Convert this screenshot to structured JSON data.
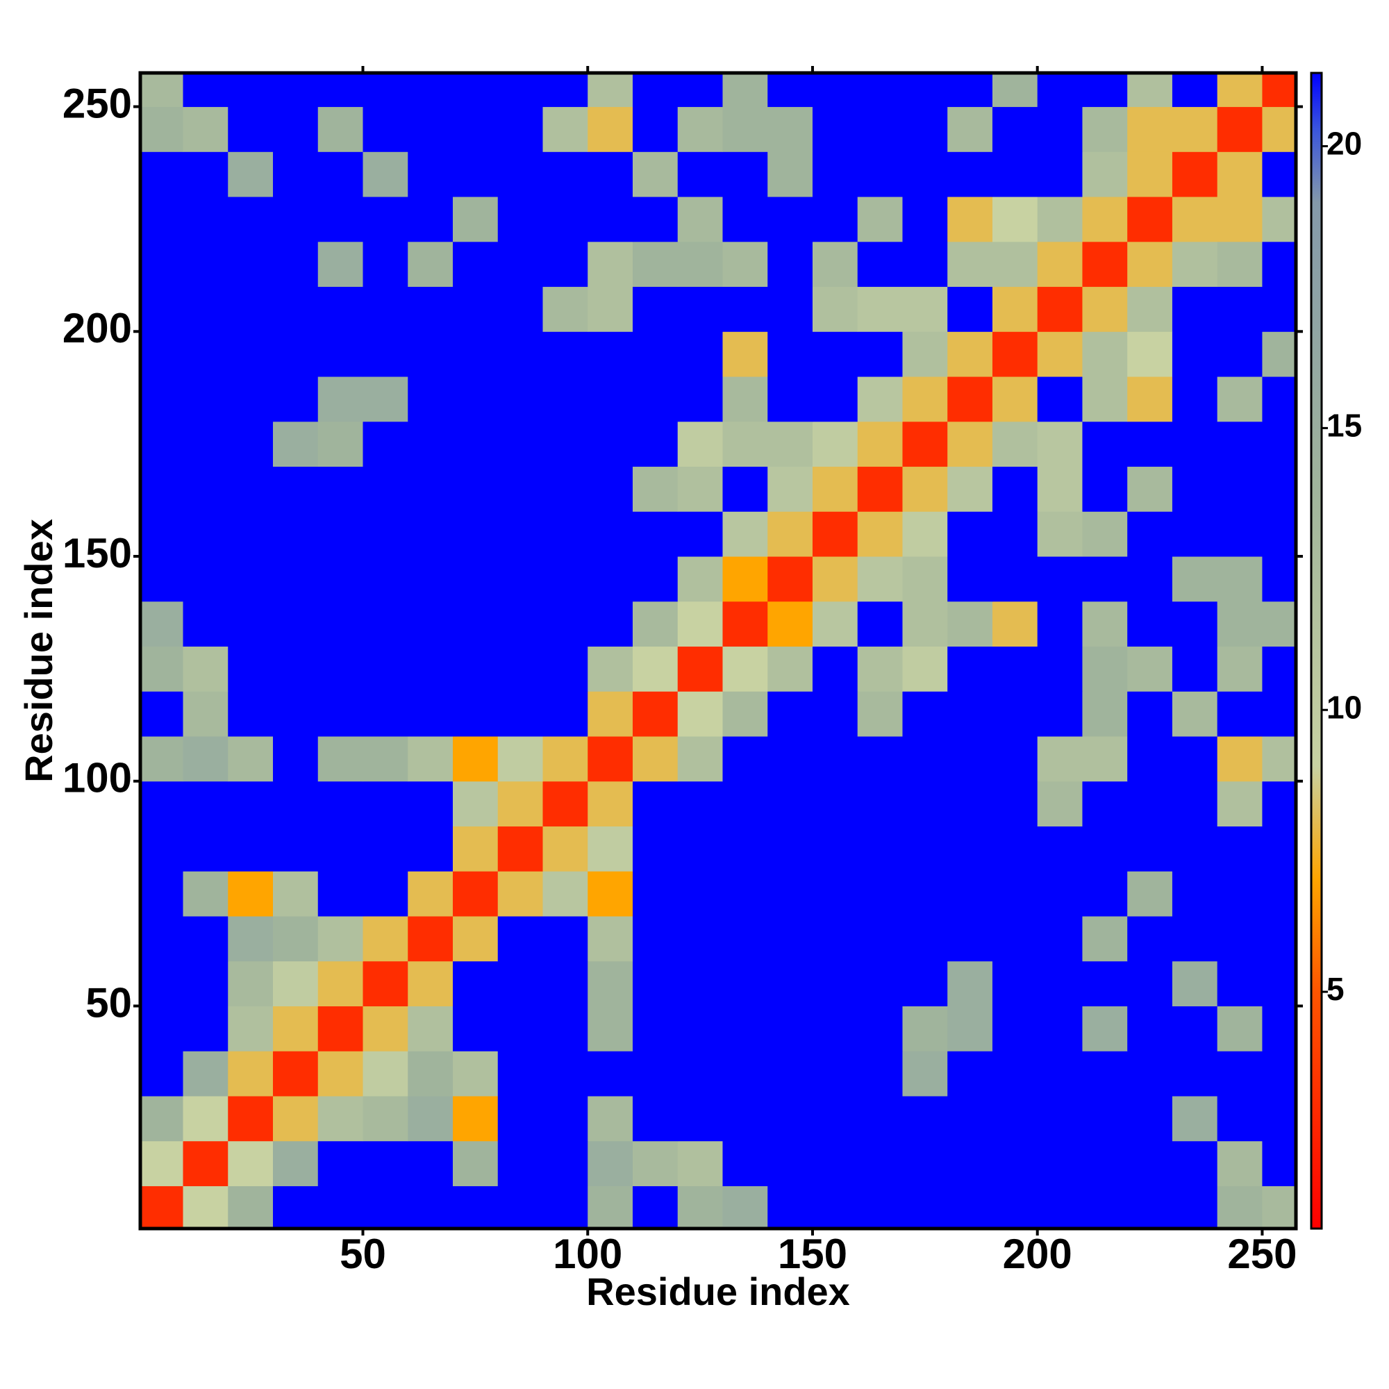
{
  "chart_data": {
    "type": "heatmap",
    "xlabel": "Residue index",
    "ylabel": "Residue index",
    "x": [
      5,
      15,
      25,
      35,
      45,
      55,
      65,
      75,
      85,
      95,
      105,
      115,
      125,
      135,
      145,
      155,
      165,
      175,
      185,
      195,
      205,
      215,
      225,
      235,
      245,
      255
    ],
    "y": [
      5,
      15,
      25,
      35,
      45,
      55,
      65,
      75,
      85,
      95,
      105,
      115,
      125,
      135,
      145,
      155,
      165,
      175,
      185,
      195,
      205,
      215,
      225,
      235,
      245,
      255
    ],
    "z": [
      [
        3,
        9,
        14,
        21.3,
        21.3,
        21.3,
        21.3,
        21.3,
        21.3,
        21.3,
        14,
        21.3,
        14,
        15,
        21.3,
        21.3,
        21.3,
        21.3,
        21.3,
        21.3,
        21.3,
        21.3,
        21.3,
        21.3,
        14,
        13
      ],
      [
        9,
        3,
        9,
        15,
        21.3,
        21.3,
        21.3,
        14,
        21.3,
        21.3,
        15,
        13,
        12,
        21.3,
        21.3,
        21.3,
        21.3,
        21.3,
        21.3,
        21.3,
        21.3,
        21.3,
        21.3,
        21.3,
        13,
        21.3
      ],
      [
        14,
        9,
        3,
        8,
        12,
        13,
        15,
        7,
        21.3,
        21.3,
        13,
        21.3,
        21.3,
        21.3,
        21.3,
        21.3,
        21.3,
        21.3,
        21.3,
        21.3,
        21.3,
        21.3,
        21.3,
        15,
        21.3,
        21.3
      ],
      [
        21.3,
        15,
        8,
        3,
        8,
        10,
        14,
        12,
        21.3,
        21.3,
        21.3,
        21.3,
        21.3,
        21.3,
        21.3,
        21.3,
        21.3,
        15,
        21.3,
        21.3,
        21.3,
        21.3,
        21.3,
        21.3,
        21.3,
        21.3
      ],
      [
        21.3,
        21.3,
        12,
        8,
        3,
        8,
        12,
        21.3,
        21.3,
        21.3,
        14,
        21.3,
        21.3,
        21.3,
        21.3,
        21.3,
        21.3,
        14,
        15,
        21.3,
        21.3,
        15,
        21.3,
        21.3,
        14,
        21.3
      ],
      [
        21.3,
        21.3,
        13,
        10,
        8,
        3,
        8,
        21.3,
        21.3,
        21.3,
        14,
        21.3,
        21.3,
        21.3,
        21.3,
        21.3,
        21.3,
        21.3,
        15,
        21.3,
        21.3,
        21.3,
        21.3,
        15,
        21.3,
        21.3
      ],
      [
        21.3,
        21.3,
        15,
        14,
        12,
        8,
        3,
        8,
        21.3,
        21.3,
        12,
        21.3,
        21.3,
        21.3,
        21.3,
        21.3,
        21.3,
        21.3,
        21.3,
        21.3,
        21.3,
        14,
        21.3,
        21.3,
        21.3,
        21.3
      ],
      [
        21.3,
        14,
        7,
        12,
        21.3,
        21.3,
        8,
        3,
        8,
        11,
        7,
        21.3,
        21.3,
        21.3,
        21.3,
        21.3,
        21.3,
        21.3,
        21.3,
        21.3,
        21.3,
        21.3,
        14,
        21.3,
        21.3,
        21.3
      ],
      [
        21.3,
        21.3,
        21.3,
        21.3,
        21.3,
        21.3,
        21.3,
        8,
        3,
        8,
        10,
        21.3,
        21.3,
        21.3,
        21.3,
        21.3,
        21.3,
        21.3,
        21.3,
        21.3,
        21.3,
        21.3,
        21.3,
        21.3,
        21.3,
        21.3
      ],
      [
        21.3,
        21.3,
        21.3,
        21.3,
        21.3,
        21.3,
        21.3,
        11,
        8,
        3,
        8,
        21.3,
        21.3,
        21.3,
        21.3,
        21.3,
        21.3,
        21.3,
        21.3,
        21.3,
        13,
        21.3,
        21.3,
        21.3,
        12,
        21.3
      ],
      [
        14,
        15,
        13,
        21.3,
        14,
        14,
        12,
        7,
        10,
        8,
        3,
        8,
        12,
        21.3,
        21.3,
        21.3,
        21.3,
        21.3,
        21.3,
        21.3,
        12,
        12,
        21.3,
        21.3,
        8,
        12
      ],
      [
        21.3,
        13,
        21.3,
        21.3,
        21.3,
        21.3,
        21.3,
        21.3,
        21.3,
        21.3,
        8,
        3,
        9,
        13,
        21.3,
        21.3,
        13,
        21.3,
        21.3,
        21.3,
        21.3,
        14,
        21.3,
        13,
        21.3,
        21.3
      ],
      [
        14,
        12,
        21.3,
        21.3,
        21.3,
        21.3,
        21.3,
        21.3,
        21.3,
        21.3,
        12,
        9,
        3,
        9,
        12,
        21.3,
        12,
        10,
        21.3,
        21.3,
        21.3,
        14,
        13,
        21.3,
        13,
        21.3
      ],
      [
        15,
        21.3,
        21.3,
        21.3,
        21.3,
        21.3,
        21.3,
        21.3,
        21.3,
        21.3,
        21.3,
        13,
        9,
        3,
        7,
        11,
        21.3,
        12,
        13,
        8,
        21.3,
        13,
        21.3,
        21.3,
        14,
        14
      ],
      [
        21.3,
        21.3,
        21.3,
        21.3,
        21.3,
        21.3,
        21.3,
        21.3,
        21.3,
        21.3,
        21.3,
        21.3,
        12,
        7,
        3,
        8,
        11,
        12,
        21.3,
        21.3,
        21.3,
        21.3,
        21.3,
        14,
        14,
        21.3
      ],
      [
        21.3,
        21.3,
        21.3,
        21.3,
        21.3,
        21.3,
        21.3,
        21.3,
        21.3,
        21.3,
        21.3,
        21.3,
        21.3,
        11,
        8,
        3,
        8,
        10,
        21.3,
        21.3,
        12,
        13,
        21.3,
        21.3,
        21.3,
        21.3
      ],
      [
        21.3,
        21.3,
        21.3,
        21.3,
        21.3,
        21.3,
        21.3,
        21.3,
        21.3,
        21.3,
        21.3,
        13,
        12,
        21.3,
        11,
        8,
        3,
        8,
        11,
        21.3,
        11,
        21.3,
        13,
        21.3,
        21.3,
        21.3
      ],
      [
        21.3,
        21.3,
        21.3,
        15,
        14,
        21.3,
        21.3,
        21.3,
        21.3,
        21.3,
        21.3,
        21.3,
        10,
        12,
        12,
        10,
        8,
        3,
        8,
        12,
        11,
        21.3,
        21.3,
        21.3,
        21.3,
        21.3
      ],
      [
        21.3,
        21.3,
        21.3,
        21.3,
        15,
        15,
        21.3,
        21.3,
        21.3,
        21.3,
        21.3,
        21.3,
        21.3,
        13,
        21.3,
        21.3,
        11,
        8,
        3,
        8,
        21.3,
        12,
        8,
        21.3,
        13,
        21.3
      ],
      [
        21.3,
        21.3,
        21.3,
        21.3,
        21.3,
        21.3,
        21.3,
        21.3,
        21.3,
        21.3,
        21.3,
        21.3,
        21.3,
        8,
        21.3,
        21.3,
        21.3,
        12,
        8,
        3,
        8,
        12,
        9,
        21.3,
        21.3,
        14
      ],
      [
        21.3,
        21.3,
        21.3,
        21.3,
        21.3,
        21.3,
        21.3,
        21.3,
        21.3,
        13,
        12,
        21.3,
        21.3,
        21.3,
        21.3,
        12,
        11,
        11,
        21.3,
        8,
        3,
        8,
        12,
        21.3,
        21.3,
        21.3
      ],
      [
        21.3,
        21.3,
        21.3,
        21.3,
        15,
        21.3,
        14,
        21.3,
        21.3,
        21.3,
        12,
        14,
        14,
        13,
        21.3,
        13,
        21.3,
        21.3,
        12,
        12,
        8,
        3,
        8,
        12,
        13,
        21.3
      ],
      [
        21.3,
        21.3,
        21.3,
        21.3,
        21.3,
        21.3,
        21.3,
        14,
        21.3,
        21.3,
        21.3,
        21.3,
        13,
        21.3,
        21.3,
        21.3,
        13,
        21.3,
        8,
        9,
        12,
        8,
        3,
        8,
        8,
        12
      ],
      [
        21.3,
        21.3,
        15,
        21.3,
        21.3,
        15,
        21.3,
        21.3,
        21.3,
        21.3,
        21.3,
        13,
        21.3,
        21.3,
        14,
        21.3,
        21.3,
        21.3,
        21.3,
        21.3,
        21.3,
        12,
        8,
        3,
        8,
        21.3
      ],
      [
        14,
        13,
        21.3,
        21.3,
        14,
        21.3,
        21.3,
        21.3,
        21.3,
        12,
        8,
        21.3,
        13,
        14,
        14,
        21.3,
        21.3,
        21.3,
        13,
        21.3,
        21.3,
        13,
        8,
        8,
        3,
        8
      ],
      [
        13,
        21.3,
        21.3,
        21.3,
        21.3,
        21.3,
        21.3,
        21.3,
        21.3,
        21.3,
        12,
        21.3,
        21.3,
        14,
        21.3,
        21.3,
        21.3,
        21.3,
        21.3,
        14,
        21.3,
        21.3,
        12,
        21.3,
        8,
        3
      ]
    ],
    "xlim": [
      0.5,
      257.5
    ],
    "ylim": [
      0.5,
      257.5
    ],
    "xticks": [
      50,
      100,
      150,
      200,
      250
    ],
    "yticks": [
      50,
      100,
      150,
      200,
      250
    ],
    "zlim": [
      0.8,
      21.3
    ],
    "zticks": [
      5,
      10,
      15,
      20
    ],
    "colorscale": [
      [
        0.8,
        "#ff0000"
      ],
      [
        5,
        "#ff5500"
      ],
      [
        7,
        "#ffa500"
      ],
      [
        9,
        "#c8d2a2"
      ],
      [
        14,
        "#a0b49c"
      ],
      [
        19,
        "#8499aa"
      ],
      [
        20.3,
        "#3a55dd"
      ],
      [
        21.3,
        "#0000ff"
      ]
    ]
  }
}
